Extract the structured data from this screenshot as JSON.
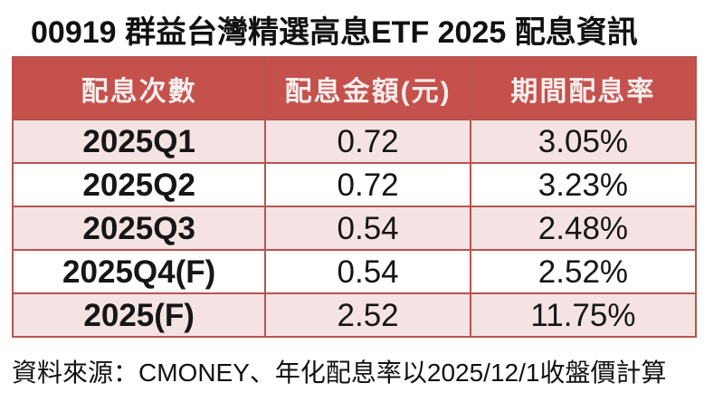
{
  "title": "00919 群益台灣精選高息ETF 2025 配息資訊",
  "table": {
    "headers": [
      "配息次數",
      "配息金額(元)",
      "期間配息率"
    ],
    "rows": [
      {
        "period": "2025Q1",
        "amount": "0.72",
        "rate": "3.05%"
      },
      {
        "period": "2025Q2",
        "amount": "0.72",
        "rate": "3.23%"
      },
      {
        "period": "2025Q3",
        "amount": "0.54",
        "rate": "2.48%"
      },
      {
        "period": "2025Q4(F)",
        "amount": "0.54",
        "rate": "2.52%"
      },
      {
        "period": "2025(F)",
        "amount": "2.52",
        "rate": "11.75%"
      }
    ]
  },
  "footer": "資料來源：CMONEY、年化配息率以2025/12/1收盤價計算",
  "colors": {
    "header_bg": "#C4514C",
    "header_text": "#F7EDEC",
    "row_alt_bg": "#F4E3E2",
    "row_bg": "#FFFFFF",
    "border": "#B75450",
    "text": "#161616"
  },
  "chart_data": {
    "type": "table",
    "title": "00919 群益台灣精選高息ETF 2025 配息資訊",
    "columns": [
      "配息次數",
      "配息金額(元)",
      "期間配息率"
    ],
    "rows": [
      [
        "2025Q1",
        0.72,
        "3.05%"
      ],
      [
        "2025Q2",
        0.72,
        "3.23%"
      ],
      [
        "2025Q3",
        0.54,
        "2.48%"
      ],
      [
        "2025Q4(F)",
        0.54,
        "2.52%"
      ],
      [
        "2025(F)",
        2.52,
        "11.75%"
      ]
    ],
    "rates_numeric_percent": [
      3.05,
      3.23,
      2.48,
      2.52,
      11.75
    ],
    "source_note": "資料來源：CMONEY、年化配息率以2025/12/1收盤價計算"
  }
}
